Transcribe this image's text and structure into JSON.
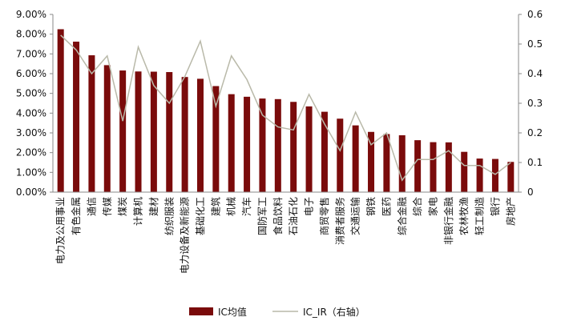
{
  "chart_data": {
    "type": "bar+line",
    "categories": [
      "电力及公用事业",
      "有色金属",
      "通信",
      "传媒",
      "煤炭",
      "计算机",
      "建材",
      "纺织服装",
      "电力设备及新能源",
      "基础化工",
      "建筑",
      "机械",
      "汽车",
      "国防军工",
      "食品饮料",
      "石油石化",
      "电子",
      "商贸零售",
      "消费者服务",
      "交通运输",
      "钢铁",
      "医药",
      "综合金融",
      "综合",
      "家电",
      "非银行金融",
      "农林牧渔",
      "轻工制造",
      "银行",
      "房地产"
    ],
    "series": [
      {
        "name": "IC均值",
        "axis": "left",
        "kind": "bar",
        "color": "#7a0b0b",
        "values": [
          0.0825,
          0.0762,
          0.0693,
          0.0643,
          0.0616,
          0.0611,
          0.061,
          0.0608,
          0.0583,
          0.0574,
          0.0537,
          0.0496,
          0.0483,
          0.0474,
          0.0471,
          0.0457,
          0.0434,
          0.0407,
          0.0372,
          0.0338,
          0.0305,
          0.0294,
          0.0288,
          0.0263,
          0.0253,
          0.0252,
          0.0204,
          0.017,
          0.0168,
          0.0153
        ]
      },
      {
        "name": "IC_IR（右轴）",
        "axis": "right",
        "kind": "line",
        "color": "#b9b9a9",
        "values": [
          0.53,
          0.48,
          0.4,
          0.46,
          0.24,
          0.49,
          0.36,
          0.3,
          0.39,
          0.51,
          0.29,
          0.46,
          0.38,
          0.26,
          0.22,
          0.21,
          0.33,
          0.23,
          0.14,
          0.27,
          0.16,
          0.2,
          0.04,
          0.11,
          0.11,
          0.14,
          0.09,
          0.09,
          0.06,
          0.1
        ]
      }
    ],
    "y_left": {
      "min": 0,
      "max": 0.09,
      "ticks": [
        "0.00%",
        "1.00%",
        "2.00%",
        "3.00%",
        "4.00%",
        "5.00%",
        "6.00%",
        "7.00%",
        "8.00%",
        "9.00%"
      ]
    },
    "y_right": {
      "min": 0,
      "max": 0.6,
      "ticks": [
        "0",
        "0.1",
        "0.2",
        "0.3",
        "0.4",
        "0.5",
        "0.6"
      ]
    },
    "grid": false,
    "legend_position": "bottom-center"
  }
}
